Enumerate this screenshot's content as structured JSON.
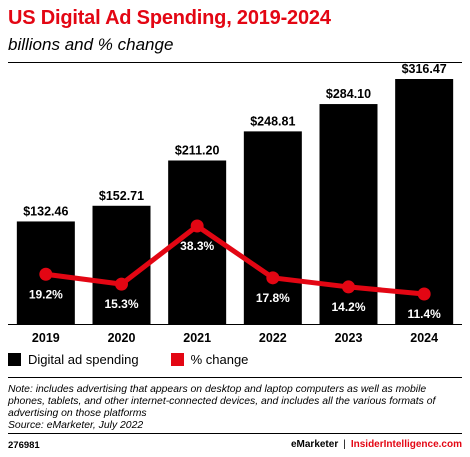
{
  "header": {
    "title": "US Digital Ad Spending, 2019-2024",
    "subtitle": "billions and % change"
  },
  "chart_data": {
    "type": "bar",
    "categories": [
      "2019",
      "2020",
      "2021",
      "2022",
      "2023",
      "2024"
    ],
    "series": [
      {
        "name": "Digital ad spending",
        "type": "bar",
        "values": [
          132.46,
          152.71,
          211.2,
          248.81,
          284.1,
          316.47
        ],
        "labels": [
          "$132.46",
          "$152.71",
          "$211.20",
          "$248.81",
          "$284.10",
          "$316.47"
        ],
        "color": "#000000"
      },
      {
        "name": "% change",
        "type": "line",
        "values": [
          19.2,
          15.3,
          38.3,
          17.8,
          14.2,
          11.4
        ],
        "labels": [
          "19.2%",
          "15.3%",
          "38.3%",
          "17.8%",
          "14.2%",
          "11.4%"
        ],
        "color": "#e30613"
      }
    ],
    "legend": "bottom-left",
    "grid": false
  },
  "legend": {
    "bar_label": "Digital ad spending",
    "line_label": "% change"
  },
  "note": "Note: includes advertising that appears on desktop and laptop computers as well as mobile phones, tablets, and other internet-connected devices, and includes all the various formats of advertising on those platforms",
  "source": "Source: eMarketer, July 2022",
  "footer": {
    "id": "276981",
    "brand_left": "eMarketer",
    "separator": "|",
    "brand_right": "InsiderIntelligence.com"
  }
}
